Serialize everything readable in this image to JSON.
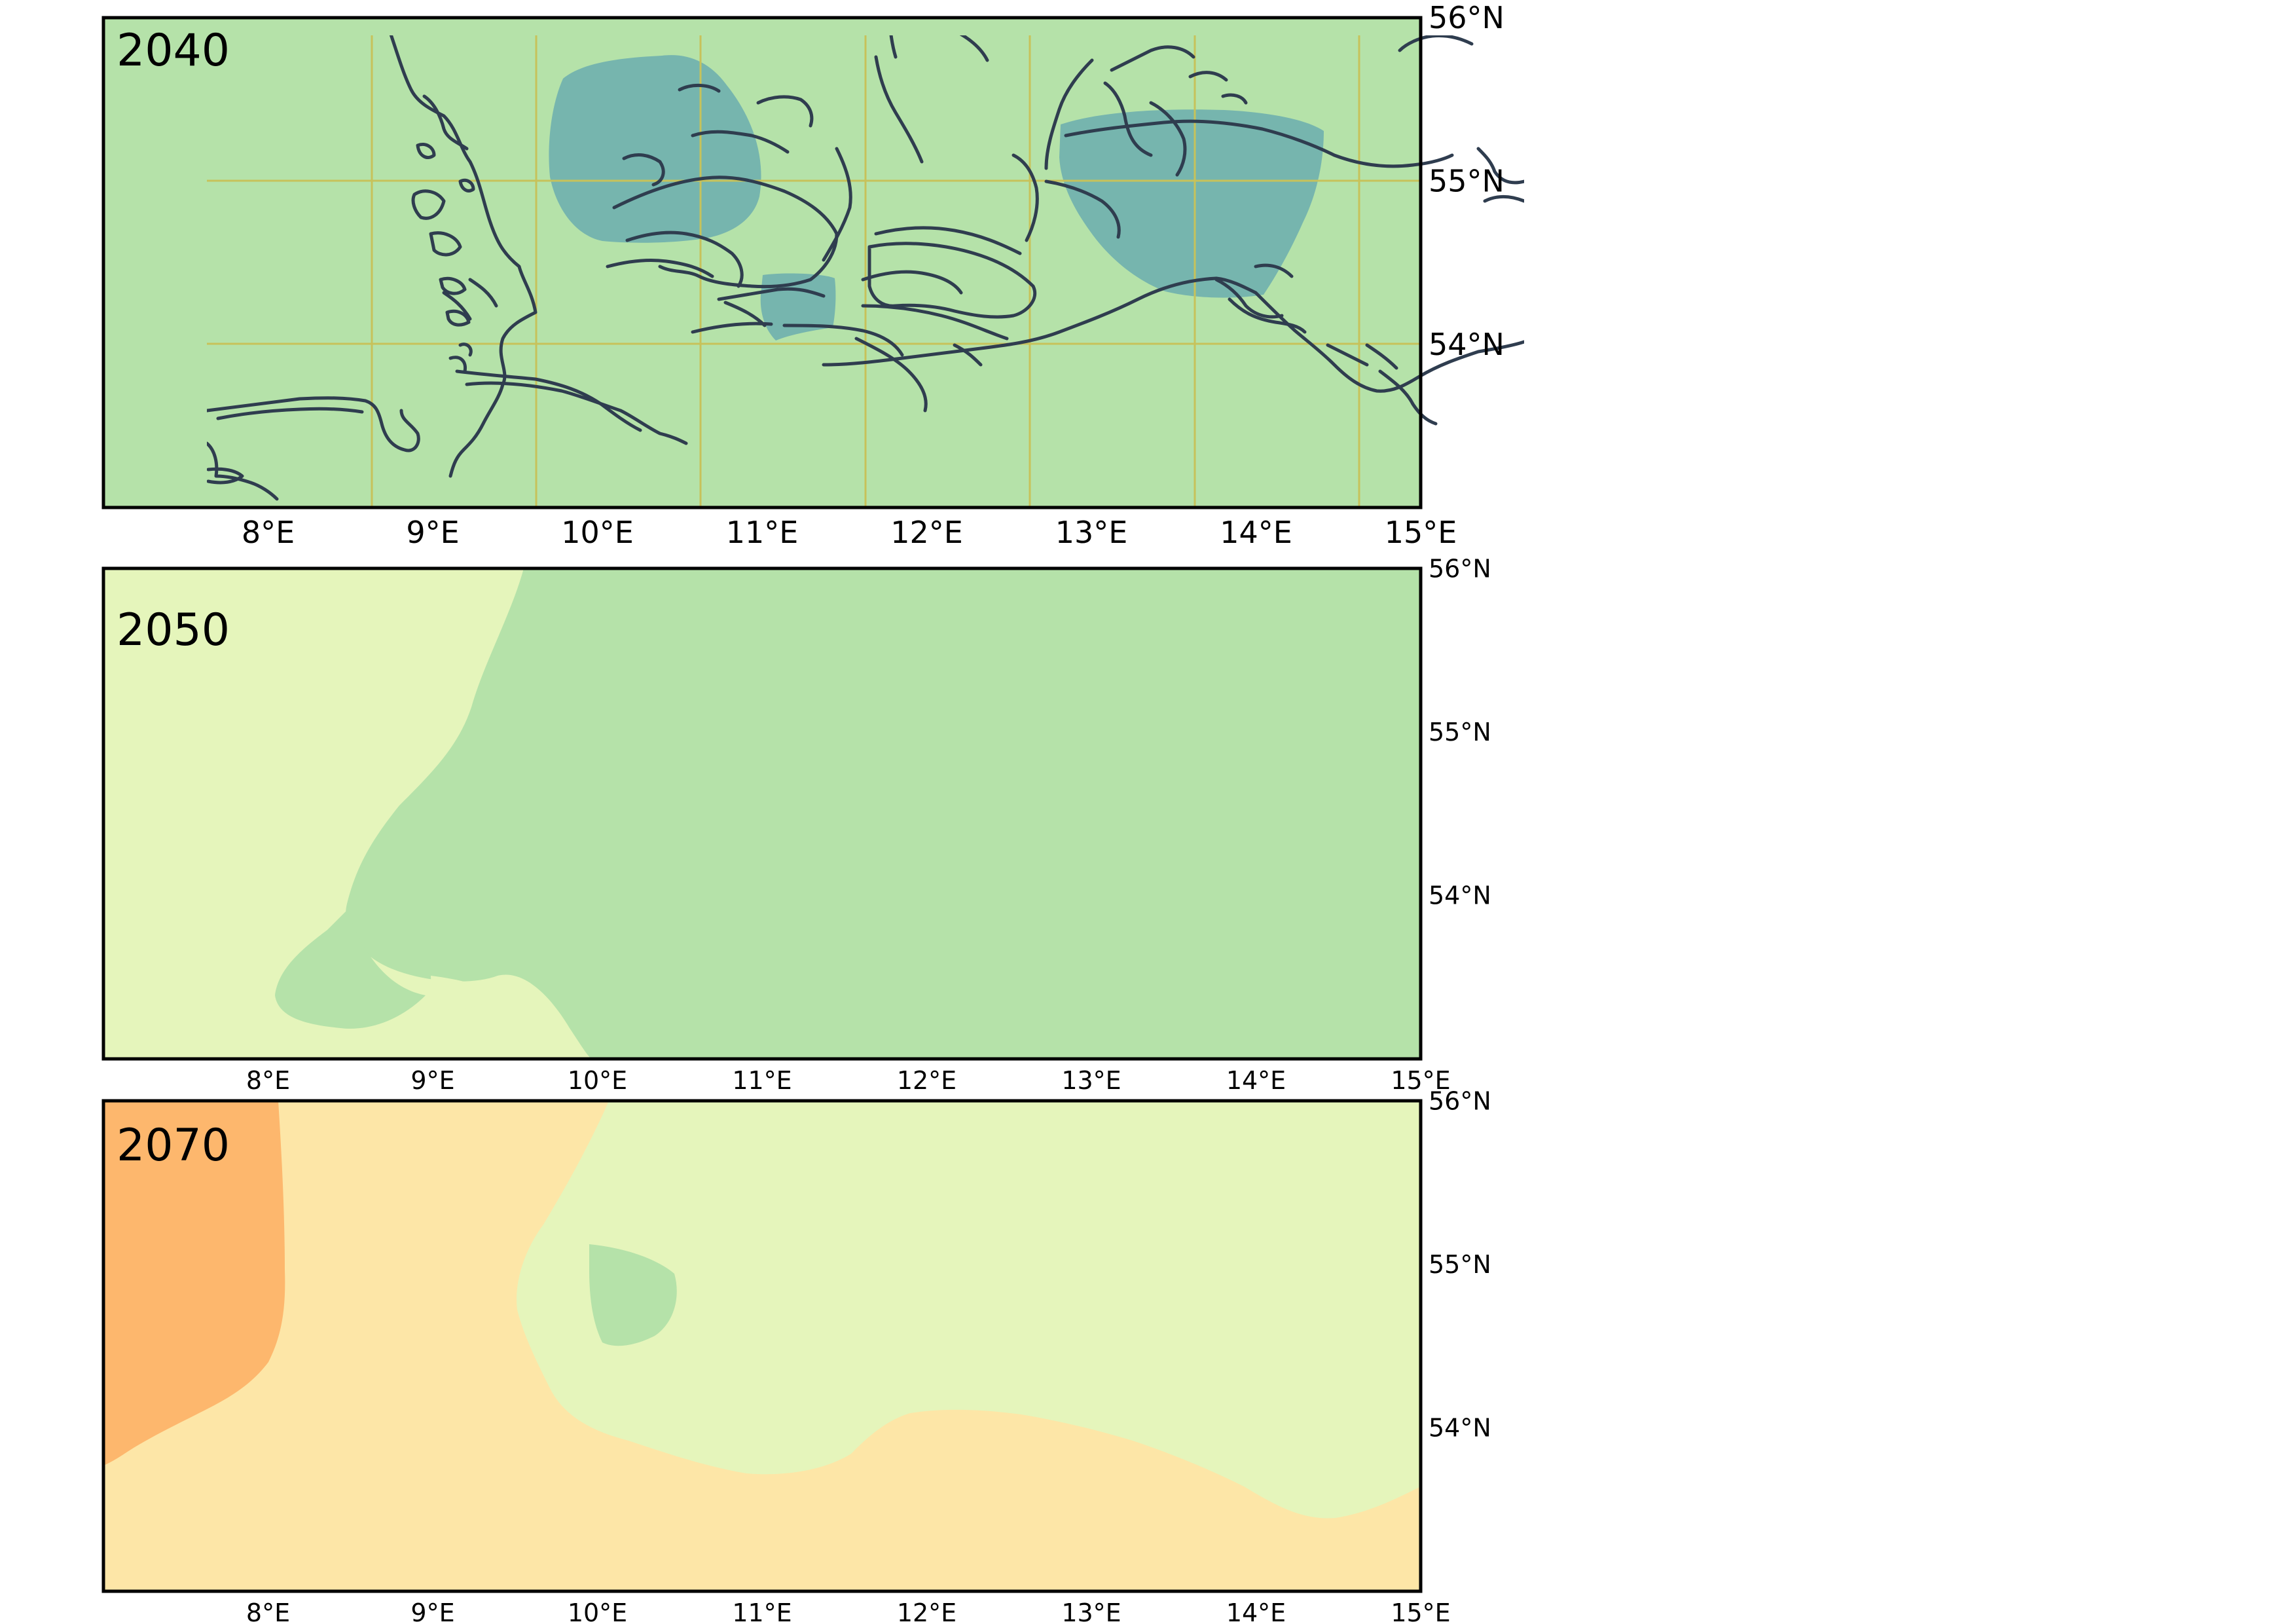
{
  "axes": {
    "lon_ticks": [
      "8°E",
      "9°E",
      "10°E",
      "11°E",
      "12°E",
      "13°E",
      "14°E",
      "15°E"
    ],
    "lat_ticks": [
      "56°N",
      "55°N",
      "54°N"
    ],
    "lon_range": [
      7.0,
      15.0
    ],
    "lat_range": [
      53.0,
      56.0
    ]
  },
  "panels": [
    {
      "year": "2040",
      "background": "#b5e2a9",
      "grid_color": "#c7c25a",
      "patch_colors": [
        "#76b5ae"
      ]
    },
    {
      "year": "2050",
      "background": "#b5e2a9",
      "grid_color": "#000000",
      "patch_colors": [
        "#e5f5bb"
      ]
    },
    {
      "year": "2070",
      "background": "#fde6a7",
      "grid_color": "#000000",
      "patch_colors": [
        "#fdb76d",
        "#e5f5bb",
        "#b5e2a9"
      ]
    }
  ],
  "coast_color": "#2f3d4f"
}
